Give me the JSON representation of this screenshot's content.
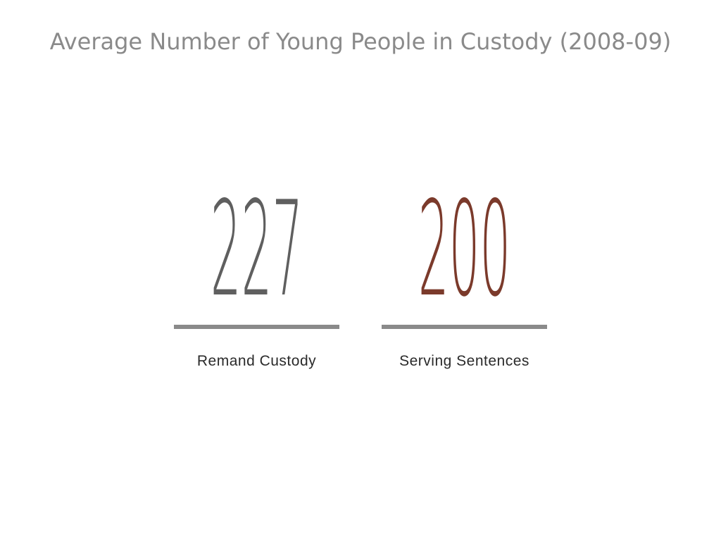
{
  "title": "Average Number of Young People in Custody (2008-09)",
  "stats": [
    {
      "value": 227,
      "label": "Remand Custody",
      "color": "#5f5f5f"
    },
    {
      "value": 200,
      "label": "Serving Sentences",
      "color": "#7b3a2b"
    }
  ],
  "rule_color": "#8a8a8a"
}
